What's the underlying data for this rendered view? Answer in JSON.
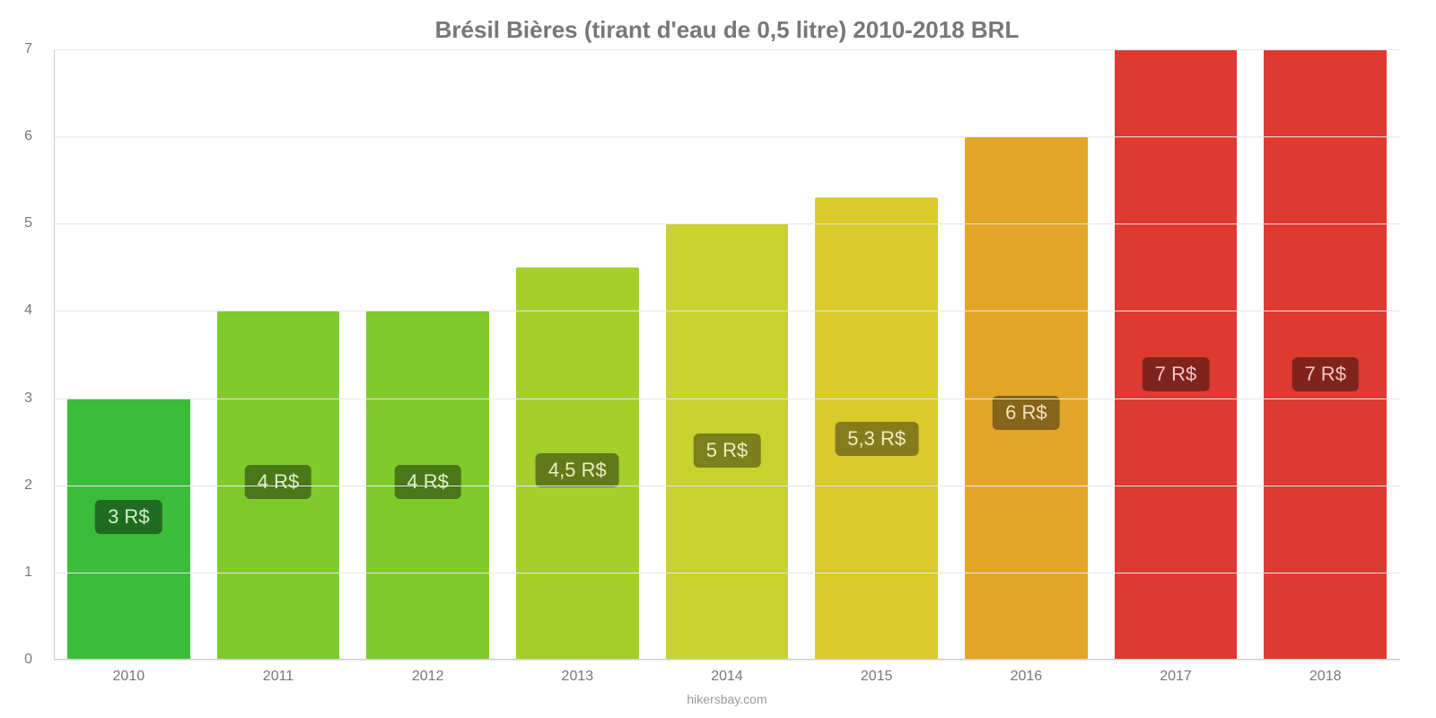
{
  "chart": {
    "type": "bar",
    "title": "Brésil Bières (tirant d'eau de 0,5 litre) 2010-2018 BRL",
    "title_fontsize": 26,
    "title_color": "#777777",
    "footer": "hikersbay.com",
    "footer_fontsize": 14,
    "footer_color": "#999999",
    "background_color": "#ffffff",
    "grid_color": "#e6e6e6",
    "axis_line_color": "#cccccc",
    "ylim": [
      0,
      7
    ],
    "yticks": [
      0,
      1,
      2,
      3,
      4,
      5,
      6,
      7
    ],
    "ytick_fontsize": 16,
    "ytick_color": "#777777",
    "xlabel_fontsize": 16,
    "xlabel_color": "#777777",
    "bar_width_pct": 82,
    "value_label_fontsize": 22,
    "categories": [
      "2010",
      "2011",
      "2012",
      "2013",
      "2014",
      "2015",
      "2016",
      "2017",
      "2018"
    ],
    "values": [
      3,
      4,
      4,
      4.5,
      5,
      5.3,
      6,
      7,
      7
    ],
    "value_labels": [
      "3 R$",
      "4 R$",
      "4 R$",
      "4,5 R$",
      "5 R$",
      "5,3 R$",
      "6 R$",
      "7 R$",
      "7 R$"
    ],
    "bar_colors": [
      "#3bbd3b",
      "#7ecb2b",
      "#7ecb2b",
      "#a5cf2b",
      "#c7d32e",
      "#d9cb2c",
      "#e3a629",
      "#dd3a31",
      "#dd3a31"
    ],
    "label_bg_colors": [
      "#216b21",
      "#4a7819",
      "#4a7819",
      "#63791b",
      "#79801d",
      "#847b1c",
      "#866419",
      "#7f231d",
      "#7f231d"
    ],
    "label_text_colors": [
      "#d1f0d1",
      "#e0f0c4",
      "#e0f0c4",
      "#e6efc2",
      "#ecf0c1",
      "#f0edbf",
      "#f3e2ba",
      "#f3c5c2",
      "#f3c5c2"
    ],
    "label_bottom_offsets_pct": [
      48,
      46,
      46,
      44,
      44,
      44,
      44,
      44,
      44
    ]
  }
}
